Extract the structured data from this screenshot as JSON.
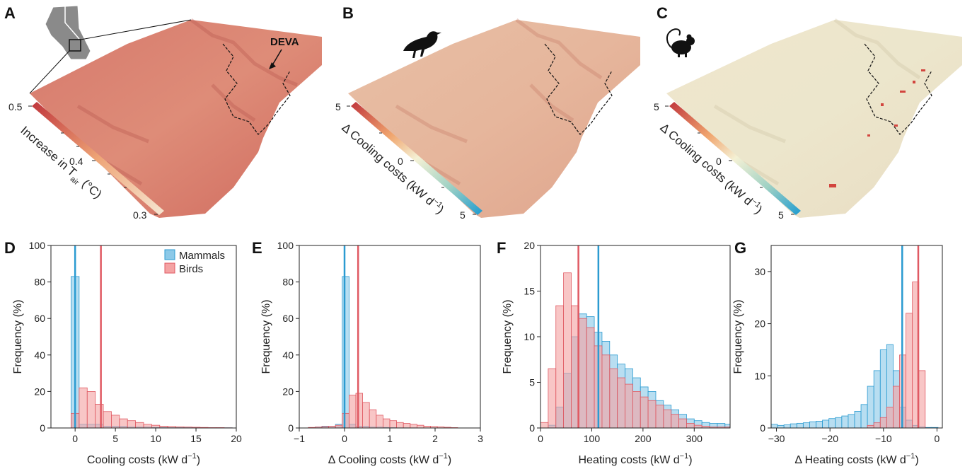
{
  "colors": {
    "mammals_fill": "#8cc9e8",
    "mammals_line": "#2b9bd1",
    "birds_fill": "#f4a3a3",
    "birds_line": "#e05a63",
    "increase_low": "#f6e6d2",
    "increase_high": "#c0363c",
    "delta_high": "#c0363c",
    "delta_mid": "#f4f1d5",
    "delta_low": "#1e9bd0"
  },
  "panels": {
    "A": {
      "label": "A",
      "annotation": "DEVA",
      "colorbar_label": "Increase in T",
      "colorbar_sub": "air",
      "colorbar_unit": " (°C)",
      "ticks": [
        "0.5",
        "0.4",
        "0.3"
      ],
      "icon": "inset-map-icon"
    },
    "B": {
      "label": "B",
      "colorbar_label": "Δ Cooling costs (kW d",
      "colorbar_sup": "−1",
      "colorbar_close": ")",
      "ticks": [
        "5",
        "0",
        "5"
      ],
      "icon": "bird-icon"
    },
    "C": {
      "label": "C",
      "colorbar_label": "Δ Cooling costs (kW d",
      "colorbar_sup": "−1",
      "colorbar_close": ")",
      "ticks": [
        "5",
        "0",
        "5"
      ],
      "icon": "mouse-icon"
    }
  },
  "legend": {
    "mammals": "Mammals",
    "birds": "Birds"
  },
  "chart_data": [
    {
      "panel": "D",
      "type": "bar",
      "xlabel": "Cooling costs (kW  d",
      "xlabel_sup": "−1",
      "xlabel_close": ")",
      "ylabel": "Frequency (%)",
      "xlim": [
        -3,
        20
      ],
      "ylim": [
        0,
        100
      ],
      "xticks": [
        0,
        5,
        10,
        15,
        20
      ],
      "yticks": [
        0,
        20,
        40,
        60,
        80,
        100
      ],
      "bin_start": -0.5,
      "bin_width": 1.0,
      "series": [
        {
          "name": "Mammals",
          "values": [
            83,
            2,
            2,
            2,
            1,
            1,
            1,
            0.5,
            0.5,
            0.5,
            0.3,
            0.3,
            0.2,
            0.2,
            0.2,
            0.2,
            0.1,
            0.1,
            0.1,
            0.1
          ],
          "median": 0
        },
        {
          "name": "Birds",
          "values": [
            8,
            22,
            20,
            13,
            9,
            7,
            5,
            4,
            3,
            2,
            1.5,
            1,
            0.8,
            0.6,
            0.5,
            0.4,
            0.3,
            0.2,
            0.2,
            0.1
          ],
          "median": 3.2
        }
      ]
    },
    {
      "panel": "E",
      "type": "bar",
      "xlabel": "Δ Cooling costs (kW  d",
      "xlabel_sup": "−1",
      "xlabel_close": ")",
      "ylabel": "Frequency (%)",
      "xlim": [
        -1,
        3
      ],
      "ylim": [
        0,
        100
      ],
      "xticks": [
        -1,
        0,
        1,
        2,
        3
      ],
      "yticks": [
        0,
        20,
        40,
        60,
        80,
        100
      ],
      "bin_start": -0.8,
      "bin_width": 0.15,
      "series": [
        {
          "name": "Mammals",
          "values": [
            0,
            0.5,
            1,
            1,
            2,
            83,
            2,
            1,
            1,
            0.5,
            0.5,
            0.3,
            0.2,
            0.1,
            0.1,
            0.1,
            0,
            0,
            0,
            0,
            0,
            0
          ],
          "median": 0
        },
        {
          "name": "Birds",
          "values": [
            0.3,
            0.5,
            0.8,
            1,
            1.5,
            8,
            18,
            19,
            14,
            10,
            7,
            5,
            4,
            3,
            2.5,
            2,
            1.5,
            1,
            0.8,
            0.6,
            0.4,
            0.2
          ],
          "median": 0.3
        }
      ]
    },
    {
      "panel": "F",
      "type": "bar",
      "xlabel": "Heating costs (kW d",
      "xlabel_sup": "−1",
      "xlabel_close": ")",
      "ylabel": "Frequency (%)",
      "xlim": [
        0,
        370
      ],
      "ylim": [
        0,
        20
      ],
      "xticks": [
        0,
        100,
        200,
        300
      ],
      "yticks": [
        0,
        5,
        10,
        15,
        20
      ],
      "bin_start": 0,
      "bin_width": 15,
      "series": [
        {
          "name": "Mammals",
          "values": [
            0,
            0.3,
            2.3,
            6,
            10,
            12.5,
            12.2,
            10.5,
            9.5,
            8,
            7,
            6.5,
            5.5,
            4.5,
            4,
            3,
            2.5,
            2,
            1.5,
            1,
            0.8,
            0.6,
            0.5,
            0.5,
            0.4
          ],
          "median": 113
        },
        {
          "name": "Birds",
          "values": [
            0.6,
            6.5,
            13.4,
            17,
            13.4,
            12,
            11,
            9,
            8,
            6.5,
            5.5,
            4.8,
            4,
            3.4,
            3,
            2.5,
            2,
            1.5,
            1,
            0.5,
            0.3,
            0.2,
            0.1,
            0.1,
            0.1
          ],
          "median": 74
        }
      ]
    },
    {
      "panel": "G",
      "type": "bar",
      "xlabel": "Δ Heating costs (kW d",
      "xlabel_sup": "−1",
      "xlabel_close": ")",
      "ylabel": "Frequency (%)",
      "xlim": [
        -31,
        1
      ],
      "ylim": [
        0,
        35
      ],
      "xticks": [
        -30,
        -20,
        -10,
        0
      ],
      "yticks": [
        0,
        10,
        20,
        30
      ],
      "bin_start": -31,
      "bin_width": 1.2,
      "series": [
        {
          "name": "Mammals",
          "values": [
            0.7,
            0.5,
            0.6,
            0.8,
            0.9,
            1,
            1.2,
            1.3,
            1.5,
            1.8,
            2,
            2.3,
            2.6,
            3.2,
            4.5,
            8,
            11,
            15,
            16,
            11,
            4,
            1.5,
            0.5,
            0.2,
            0.1,
            0.1,
            0
          ],
          "median": -6.5
        },
        {
          "name": "Birds",
          "values": [
            0,
            0,
            0,
            0,
            0,
            0,
            0,
            0,
            0,
            0,
            0,
            0,
            0,
            0,
            0,
            0.5,
            1,
            2,
            4,
            8,
            14,
            22,
            28,
            11,
            0,
            0,
            0
          ],
          "median": -3.5
        }
      ]
    }
  ]
}
